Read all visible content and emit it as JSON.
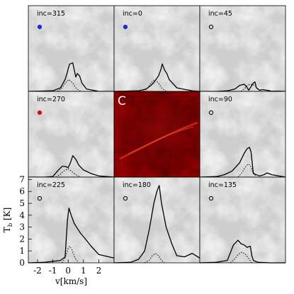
{
  "chart_data": {
    "type": "line",
    "xlabel": "v[km/s]",
    "ylabel": "T_b [K]",
    "ylabel_main": "T",
    "ylabel_sub": "b",
    "ylabel_unit": " [K]",
    "xlim": [
      -2.6,
      3.0
    ],
    "ylim": [
      0,
      7.2
    ],
    "x_ticks": [
      -2,
      -1,
      0,
      1,
      2
    ],
    "y_ticks": [
      0,
      1,
      2,
      3,
      4,
      5,
      6,
      7
    ],
    "background_map": "grayscale column density image behind each spectrum",
    "center_panel": {
      "label": "C",
      "image": "dark red filament map"
    },
    "panels": [
      {
        "label": "inc=315",
        "marker_color": "#1a2ecc",
        "marker_style": "filled",
        "solid": {
          "x": [
            -2.6,
            -1.0,
            -0.5,
            -0.2,
            -0.05,
            0.0,
            0.1,
            0.3,
            0.5,
            0.6,
            0.75,
            0.9,
            1.2,
            2.0,
            3.0
          ],
          "y": [
            0,
            0.05,
            0.3,
            1.0,
            1.6,
            1.9,
            2.3,
            2.4,
            1.2,
            1.5,
            1.3,
            0.7,
            0.2,
            0,
            0
          ]
        },
        "dotted": {
          "x": [
            -0.7,
            -0.4,
            -0.2,
            0.05,
            0.3,
            0.5,
            0.8
          ],
          "y": [
            0,
            0.3,
            0.7,
            1.0,
            0.7,
            0.3,
            0
          ]
        }
      },
      {
        "label": "inc=0",
        "marker_color": "#1a2ecc",
        "marker_style": "filled",
        "solid": {
          "x": [
            -2.6,
            -1.0,
            -0.5,
            -0.2,
            0.0,
            0.3,
            0.45,
            0.55,
            0.7,
            0.85,
            1.0,
            1.5,
            2.5,
            3.0
          ],
          "y": [
            0,
            0.05,
            0.2,
            0.5,
            0.75,
            1.3,
            1.8,
            2.3,
            1.8,
            1.5,
            1.0,
            0.3,
            0.05,
            0
          ]
        },
        "dotted": {
          "x": [
            -0.7,
            -0.4,
            -0.2,
            0.05,
            0.3,
            0.5,
            0.8
          ],
          "y": [
            0,
            0.3,
            0.7,
            1.0,
            0.7,
            0.3,
            0
          ]
        }
      },
      {
        "label": "inc=45",
        "marker_color": "#000000",
        "marker_style": "open",
        "solid": {
          "x": [
            -2.6,
            -1.5,
            -0.8,
            -0.3,
            0.0,
            0.3,
            0.45,
            0.6,
            0.9,
            1.0,
            1.1,
            1.3,
            1.5,
            2.0,
            3.0
          ],
          "y": [
            0,
            0,
            0.05,
            0.2,
            0.5,
            0.6,
            0.4,
            0.1,
            0.7,
            0.8,
            0.3,
            0.1,
            0.15,
            0.05,
            0
          ]
        },
        "dotted": {
          "x": [
            0.1,
            0.3,
            0.5,
            0.7,
            1.0,
            1.2,
            1.4
          ],
          "y": [
            0,
            0.2,
            0.5,
            0.6,
            0.5,
            0.2,
            0
          ]
        }
      },
      {
        "label": "inc=270",
        "marker_color": "#cc1111",
        "marker_style": "filled",
        "solid": {
          "x": [
            -2.6,
            -1.5,
            -1.0,
            -0.7,
            -0.4,
            -0.2,
            0.0,
            0.15,
            0.3,
            0.5,
            0.7,
            1.0,
            1.5,
            2.0,
            3.0
          ],
          "y": [
            0,
            0,
            0.05,
            0.5,
            0.9,
            0.9,
            0.8,
            1.2,
            1.8,
            1.5,
            1.0,
            0.6,
            0.3,
            0.1,
            0
          ]
        },
        "dotted": {
          "x": [
            -0.8,
            -0.5,
            -0.3,
            0.0,
            0.2,
            0.45,
            0.8
          ],
          "y": [
            0,
            0.25,
            0.5,
            0.7,
            0.5,
            0.25,
            0
          ]
        }
      },
      {
        "label": "inc=90",
        "marker_color": "#000000",
        "marker_style": "open",
        "solid": {
          "x": [
            -2.6,
            -1.5,
            -1.0,
            -0.5,
            0.0,
            0.3,
            0.5,
            0.65,
            0.75,
            0.9,
            1.3,
            1.6,
            1.8,
            2.1,
            3.0
          ],
          "y": [
            0,
            0.05,
            0.2,
            0.5,
            1.2,
            2.0,
            2.4,
            2.5,
            2.1,
            0.3,
            0.1,
            0.2,
            0.35,
            0.2,
            0
          ]
        },
        "dotted": {
          "x": [
            -0.1,
            0.15,
            0.35,
            0.55,
            0.7,
            0.85,
            1.1
          ],
          "y": [
            0,
            0.35,
            0.8,
            1.1,
            1.0,
            0.5,
            0
          ]
        }
      },
      {
        "label": "inc=225",
        "marker_color": "#000000",
        "marker_style": "open",
        "solid": {
          "x": [
            -2.6,
            -1.5,
            -0.5,
            -0.2,
            -0.05,
            0.05,
            0.2,
            0.4,
            0.6,
            0.8,
            1.0,
            1.5,
            2.0,
            3.0
          ],
          "y": [
            0,
            0.05,
            0.2,
            0.5,
            3.5,
            4.6,
            4.0,
            3.3,
            2.9,
            2.5,
            2.2,
            1.4,
            0.7,
            0.4
          ]
        },
        "dotted": {
          "x": [
            -0.4,
            -0.2,
            0.0,
            0.1,
            0.25,
            0.45,
            0.7
          ],
          "y": [
            0,
            0.4,
            1.2,
            1.4,
            1.1,
            0.4,
            0
          ]
        }
      },
      {
        "label": "inc=180",
        "marker_color": "#000000",
        "marker_style": "open",
        "solid": {
          "x": [
            -2.6,
            -1.5,
            -1.0,
            -0.6,
            -0.3,
            0.0,
            0.2,
            0.35,
            0.5,
            0.8,
            1.2,
            1.5,
            2.0,
            2.5,
            3.0
          ],
          "y": [
            0,
            0.05,
            0.3,
            1.0,
            2.8,
            5.0,
            6.0,
            6.5,
            5.0,
            3.0,
            1.5,
            0.6,
            0.5,
            0.8,
            0.4
          ]
        },
        "dotted": {
          "x": [
            -0.6,
            -0.3,
            -0.1,
            0.1,
            0.3,
            0.5,
            0.7
          ],
          "y": [
            0,
            0.2,
            0.6,
            0.8,
            0.6,
            0.2,
            0
          ]
        }
      },
      {
        "label": "inc=135",
        "marker_color": "#000000",
        "marker_style": "open",
        "solid": {
          "x": [
            -2.6,
            -1.5,
            -0.8,
            -0.4,
            -0.1,
            0.1,
            0.3,
            0.5,
            0.7,
            0.8,
            0.9,
            1.2,
            2.0,
            3.0
          ],
          "y": [
            0,
            0.05,
            0.2,
            1.5,
            1.9,
            1.6,
            1.5,
            1.3,
            1.4,
            0.6,
            0.2,
            0.05,
            0,
            0
          ]
        },
        "dotted": {
          "x": [
            -0.6,
            -0.3,
            -0.1,
            0.15,
            0.4,
            0.6,
            0.8
          ],
          "y": [
            0,
            0.35,
            0.7,
            0.9,
            0.7,
            0.35,
            0
          ]
        }
      }
    ]
  }
}
